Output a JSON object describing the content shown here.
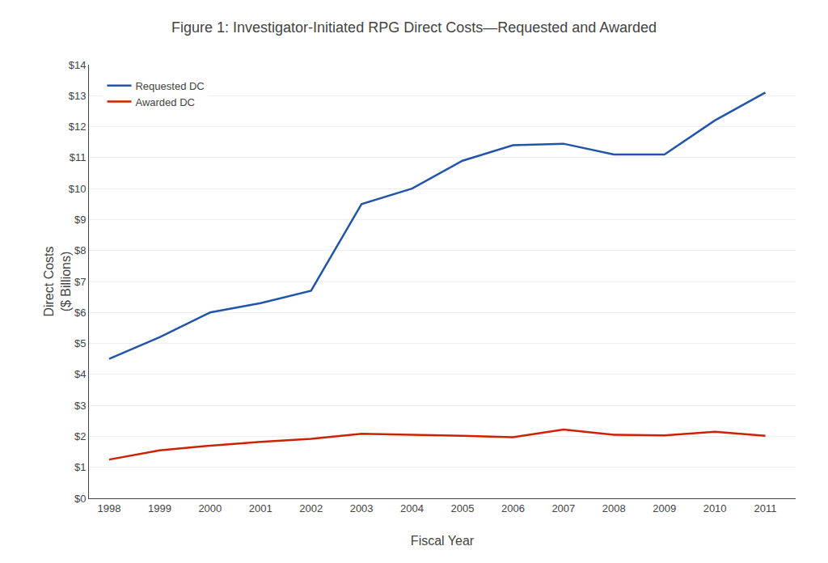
{
  "chart_data": {
    "type": "line",
    "title": "Figure 1: Investigator-Initiated RPG Direct Costs—Requested and Awarded",
    "xlabel": "Fiscal Year",
    "ylabel": [
      "Direct Costs",
      "($ Billions)"
    ],
    "x": [
      1998,
      1999,
      2000,
      2001,
      2002,
      2003,
      2004,
      2005,
      2006,
      2007,
      2008,
      2009,
      2010,
      2011
    ],
    "series": [
      {
        "name": "Requested DC",
        "color": "#2255AA",
        "values": [
          4.5,
          5.2,
          6.0,
          6.3,
          6.7,
          9.5,
          10.0,
          10.9,
          11.4,
          11.45,
          11.1,
          11.1,
          12.2,
          13.1
        ]
      },
      {
        "name": "Awarded DC",
        "color": "#CC2200",
        "values": [
          1.25,
          1.55,
          1.7,
          1.82,
          1.92,
          2.08,
          2.05,
          2.02,
          1.97,
          2.22,
          2.05,
          2.03,
          2.15,
          2.02
        ]
      }
    ],
    "xlim": [
      1997.6,
      2011.6
    ],
    "xticks": [
      1998,
      1999,
      2000,
      2001,
      2002,
      2003,
      2004,
      2005,
      2006,
      2007,
      2008,
      2009,
      2010,
      2011
    ],
    "ylim": [
      0,
      14
    ],
    "yticks": [
      {
        "value": 0,
        "label": "$0"
      },
      {
        "value": 1,
        "label": "$1"
      },
      {
        "value": 2,
        "label": "$2"
      },
      {
        "value": 3,
        "label": "$3"
      },
      {
        "value": 4,
        "label": "$4"
      },
      {
        "value": 5,
        "label": "$5"
      },
      {
        "value": 6,
        "label": "$6"
      },
      {
        "value": 7,
        "label": "$7"
      },
      {
        "value": 8,
        "label": "$8"
      },
      {
        "value": 9,
        "label": "$9"
      },
      {
        "value": 10,
        "label": "$10"
      },
      {
        "value": 11,
        "label": "$11"
      },
      {
        "value": 12,
        "label": "$12"
      },
      {
        "value": 13,
        "label": "$13"
      },
      {
        "value": 14,
        "label": "$14"
      }
    ],
    "grid": "y",
    "legend": "upper left"
  }
}
